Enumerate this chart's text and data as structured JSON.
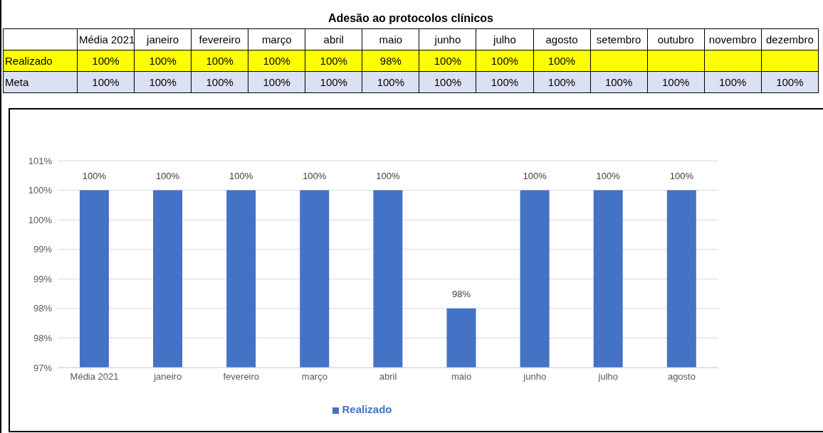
{
  "chart_data": [
    {
      "type": "other",
      "title": "Adesão ao protocolos clínicos",
      "categories": [
        "Média 2021",
        "janeiro",
        "fevereiro",
        "março",
        "abril",
        "maio",
        "junho",
        "julho",
        "agosto",
        "setembro",
        "outubro",
        "novembro",
        "dezembro"
      ],
      "series": [
        {
          "name": "Realizado",
          "color": "#ffff00",
          "values": [
            100,
            100,
            100,
            100,
            100,
            98,
            100,
            100,
            100,
            null,
            null,
            null,
            null
          ],
          "value_labels": [
            "100%",
            "100%",
            "100%",
            "100%",
            "100%",
            "98%",
            "100%",
            "100%",
            "100%",
            null,
            null,
            null,
            null
          ]
        },
        {
          "name": "Meta",
          "color": "#d9e1f2",
          "values": [
            100,
            100,
            100,
            100,
            100,
            100,
            100,
            100,
            100,
            100,
            100,
            100,
            100
          ],
          "value_labels": [
            "100%",
            "100%",
            "100%",
            "100%",
            "100%",
            "100%",
            "100%",
            "100%",
            "100%",
            "100%",
            "100%",
            "100%",
            "100%"
          ]
        }
      ]
    },
    {
      "type": "bar",
      "categories": [
        "Média 2021",
        "janeiro",
        "fevereiro",
        "março",
        "abril",
        "maio",
        "junho",
        "julho",
        "agosto"
      ],
      "series": [
        {
          "name": "Realizado",
          "color": "#4472c4",
          "values": [
            100,
            100,
            100,
            100,
            100,
            98,
            100,
            100,
            100
          ],
          "value_labels": [
            "100%",
            "100%",
            "100%",
            "100%",
            "100%",
            "98%",
            "100%",
            "100%",
            "100%"
          ]
        }
      ],
      "ylim": [
        97,
        100.5
      ],
      "yticks": [
        {
          "value": 97,
          "label": "97%"
        },
        {
          "value": 97.5,
          "label": "98%"
        },
        {
          "value": 98,
          "label": "98%"
        },
        {
          "value": 98.5,
          "label": "99%"
        },
        {
          "value": 99,
          "label": "99%"
        },
        {
          "value": 99.5,
          "label": "100%"
        },
        {
          "value": 100,
          "label": "100%"
        },
        {
          "value": 100.5,
          "label": "101%"
        }
      ],
      "grid": "y",
      "legend": "bottom"
    }
  ]
}
